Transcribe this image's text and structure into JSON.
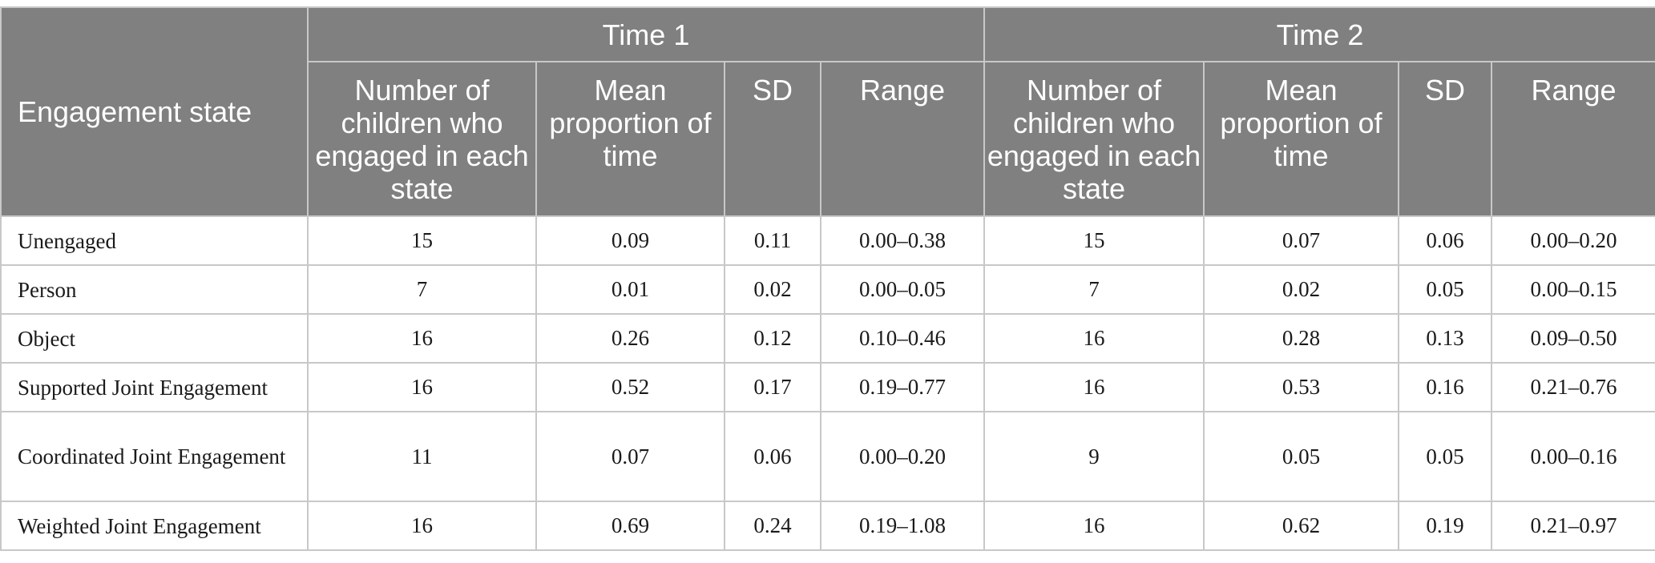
{
  "table": {
    "row_header": "Engagement state",
    "groups": [
      "Time 1",
      "Time 2"
    ],
    "columns": [
      "Number of children who engaged in each state",
      "Mean proportion of time",
      "SD",
      "Range"
    ],
    "rows": [
      {
        "label": "Unengaged",
        "cells": [
          "15",
          "0.09",
          "0.11",
          "0.00–0.38",
          "15",
          "0.07",
          "0.06",
          "0.00–0.20"
        ]
      },
      {
        "label": "Person",
        "cells": [
          "7",
          "0.01",
          "0.02",
          "0.00–0.05",
          "7",
          "0.02",
          "0.05",
          "0.00–0.15"
        ]
      },
      {
        "label": "Object",
        "cells": [
          "16",
          "0.26",
          "0.12",
          "0.10–0.46",
          "16",
          "0.28",
          "0.13",
          "0.09–0.50"
        ]
      },
      {
        "label": "Supported Joint Engagement",
        "cells": [
          "16",
          "0.52",
          "0.17",
          "0.19–0.77",
          "16",
          "0.53",
          "0.16",
          "0.21–0.76"
        ]
      },
      {
        "label": "Coordinated Joint Engagement",
        "cells": [
          "11",
          "0.07",
          "0.06",
          "0.00–0.20",
          "9",
          "0.05",
          "0.05",
          "0.00–0.16"
        ]
      },
      {
        "label": "Weighted Joint Engagement",
        "cells": [
          "16",
          "0.69",
          "0.24",
          "0.19–1.08",
          "16",
          "0.62",
          "0.19",
          "0.21–0.97"
        ]
      }
    ]
  }
}
